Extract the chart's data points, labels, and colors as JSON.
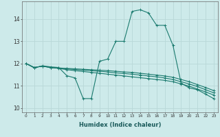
{
  "background_color": "#cdeaea",
  "grid_color": "#b8d8d8",
  "line_color": "#1a7a6e",
  "xlabel": "Humidex (Indice chaleur)",
  "xlim": [
    -0.5,
    23.5
  ],
  "ylim": [
    9.8,
    14.8
  ],
  "yticks": [
    10,
    11,
    12,
    13,
    14
  ],
  "xticks": [
    0,
    1,
    2,
    3,
    4,
    5,
    6,
    7,
    8,
    9,
    10,
    11,
    12,
    13,
    14,
    15,
    16,
    17,
    18,
    19,
    20,
    21,
    22,
    23
  ],
  "curves": [
    {
      "x": [
        0,
        1,
        2,
        3,
        4,
        5,
        6,
        7,
        8,
        9,
        10,
        11,
        12,
        13,
        14,
        15,
        16,
        17,
        18,
        19,
        20,
        21,
        22,
        23
      ],
      "y": [
        12.0,
        11.8,
        11.9,
        11.85,
        11.82,
        11.45,
        11.35,
        10.42,
        10.42,
        12.1,
        12.2,
        13.0,
        13.0,
        14.35,
        14.42,
        14.28,
        13.72,
        13.72,
        12.82,
        11.12,
        10.9,
        10.82,
        10.62,
        10.42
      ]
    },
    {
      "x": [
        0,
        1,
        2,
        3,
        4,
        5,
        6,
        7,
        8,
        9,
        10,
        11,
        12,
        13,
        14,
        15,
        16,
        17,
        18,
        19,
        20,
        21,
        22,
        23
      ],
      "y": [
        12.0,
        11.82,
        11.88,
        11.82,
        11.78,
        11.72,
        11.68,
        11.64,
        11.6,
        11.56,
        11.52,
        11.48,
        11.44,
        11.4,
        11.36,
        11.32,
        11.28,
        11.24,
        11.18,
        11.08,
        10.98,
        10.85,
        10.72,
        10.58
      ]
    },
    {
      "x": [
        0,
        1,
        2,
        3,
        4,
        5,
        6,
        7,
        8,
        9,
        10,
        11,
        12,
        13,
        14,
        15,
        16,
        17,
        18,
        19,
        20,
        21,
        22,
        23
      ],
      "y": [
        12.0,
        11.82,
        11.88,
        11.82,
        11.8,
        11.76,
        11.73,
        11.7,
        11.68,
        11.65,
        11.62,
        11.58,
        11.55,
        11.52,
        11.48,
        11.44,
        11.4,
        11.35,
        11.28,
        11.18,
        11.08,
        10.96,
        10.82,
        10.68
      ]
    },
    {
      "x": [
        0,
        1,
        2,
        3,
        4,
        5,
        6,
        7,
        8,
        9,
        10,
        11,
        12,
        13,
        14,
        15,
        16,
        17,
        18,
        19,
        20,
        21,
        22,
        23
      ],
      "y": [
        12.0,
        11.82,
        11.88,
        11.82,
        11.8,
        11.78,
        11.76,
        11.74,
        11.72,
        11.7,
        11.68,
        11.65,
        11.62,
        11.6,
        11.56,
        11.52,
        11.48,
        11.44,
        11.38,
        11.28,
        11.18,
        11.05,
        10.92,
        10.78
      ]
    }
  ]
}
